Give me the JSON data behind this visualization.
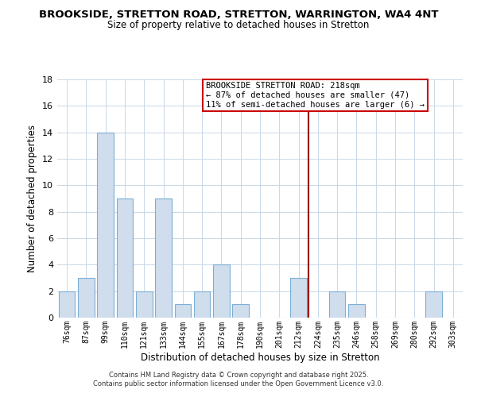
{
  "title": "BROOKSIDE, STRETTON ROAD, STRETTON, WARRINGTON, WA4 4NT",
  "subtitle": "Size of property relative to detached houses in Stretton",
  "xlabel": "Distribution of detached houses by size in Stretton",
  "ylabel": "Number of detached properties",
  "categories": [
    "76sqm",
    "87sqm",
    "99sqm",
    "110sqm",
    "121sqm",
    "133sqm",
    "144sqm",
    "155sqm",
    "167sqm",
    "178sqm",
    "190sqm",
    "201sqm",
    "212sqm",
    "224sqm",
    "235sqm",
    "246sqm",
    "258sqm",
    "269sqm",
    "280sqm",
    "292sqm",
    "303sqm"
  ],
  "values": [
    2,
    3,
    14,
    9,
    2,
    9,
    1,
    2,
    4,
    1,
    0,
    0,
    3,
    0,
    2,
    1,
    0,
    0,
    0,
    2,
    0
  ],
  "bar_color": "#cfdded",
  "bar_edge_color": "#7bafd4",
  "grid_color": "#c8d8e8",
  "background_color": "#ffffff",
  "vline_x": 12.5,
  "vline_color": "#990000",
  "annotation_title": "BROOKSIDE STRETTON ROAD: 218sqm",
  "annotation_line1": "← 87% of detached houses are smaller (47)",
  "annotation_line2": "11% of semi-detached houses are larger (6) →",
  "annotation_box_color": "#ffffff",
  "annotation_box_edge": "#cc0000",
  "ylim": [
    0,
    18
  ],
  "yticks": [
    0,
    2,
    4,
    6,
    8,
    10,
    12,
    14,
    16,
    18
  ],
  "footer1": "Contains HM Land Registry data © Crown copyright and database right 2025.",
  "footer2": "Contains public sector information licensed under the Open Government Licence v3.0."
}
